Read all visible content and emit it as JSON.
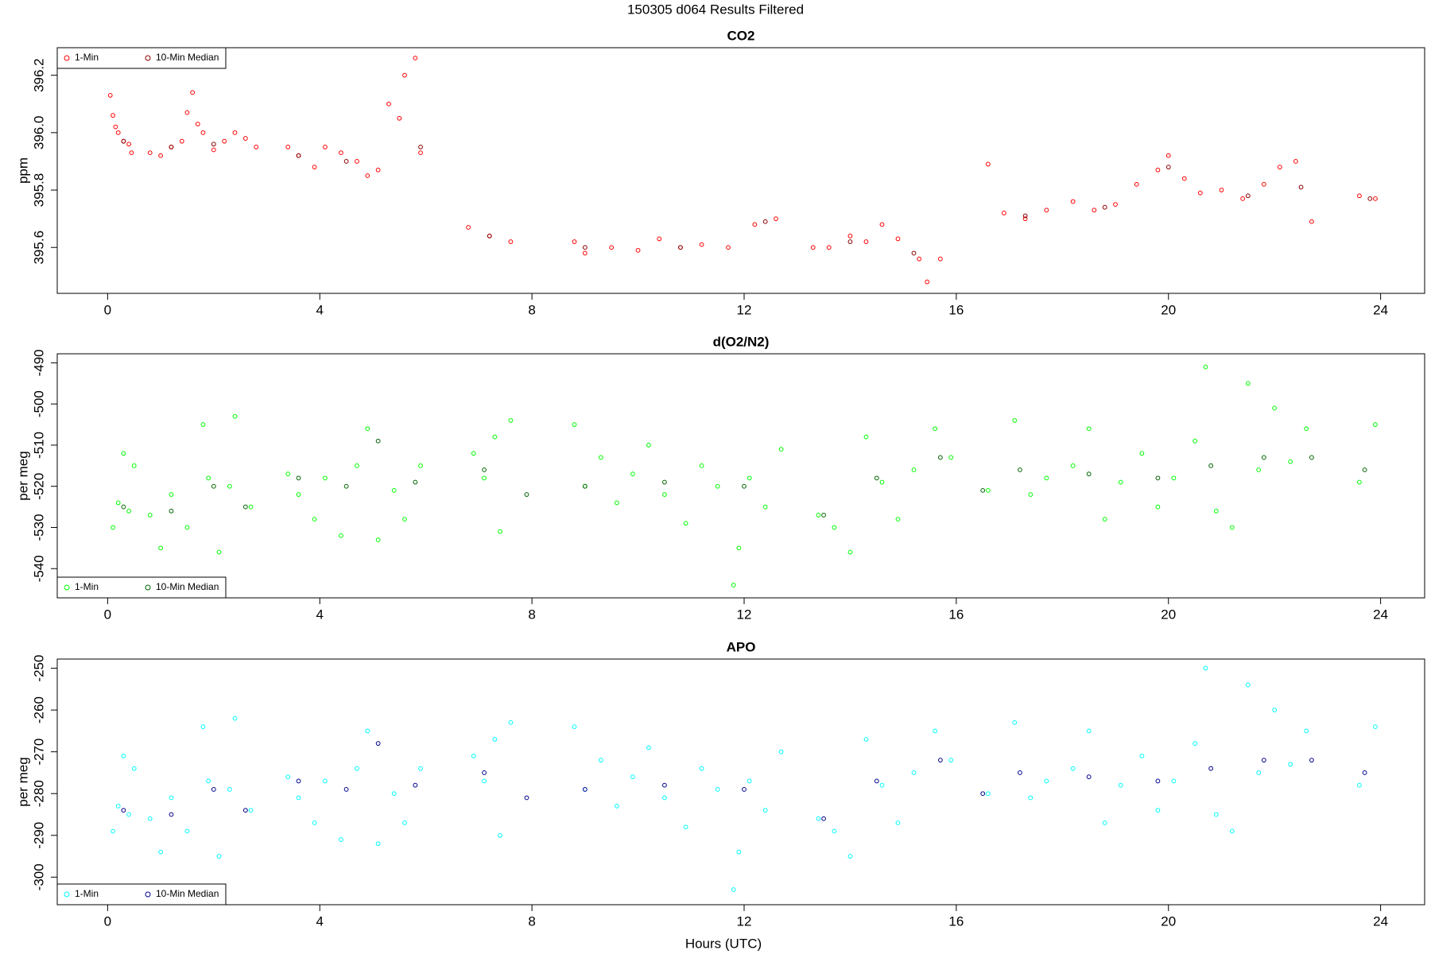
{
  "title": "150305   d064   Results Filtered",
  "xlabel": "Hours (UTC)",
  "chart_data": [
    {
      "type": "scatter",
      "title": "CO2",
      "ylabel": "ppm",
      "legend": "top-left",
      "xlim": [
        -0.95,
        24.83
      ],
      "xticks": [
        0,
        4,
        8,
        12,
        16,
        20,
        24
      ],
      "ylim": [
        395.44,
        396.296
      ],
      "yticks": [
        395.6,
        395.8,
        {
          "value": 396,
          "label": "396.0"
        },
        396.2
      ],
      "series": [
        {
          "name": "1-Min",
          "color": "#ff0000",
          "x": [
            0.05,
            0.1,
            0.15,
            0.2,
            0.3,
            0.4,
            0.45,
            0.8,
            1.0,
            1.2,
            1.4,
            1.5,
            1.6,
            1.7,
            1.8,
            2.0,
            2.2,
            2.4,
            2.6,
            2.8,
            3.4,
            3.6,
            3.9,
            4.1,
            4.4,
            4.7,
            4.9,
            5.1,
            5.3,
            5.5,
            5.6,
            5.8,
            5.9,
            6.8,
            7.2,
            7.6,
            8.8,
            9.0,
            9.5,
            10.0,
            10.4,
            10.8,
            11.2,
            11.7,
            12.2,
            12.6,
            13.3,
            13.6,
            14.0,
            14.3,
            14.6,
            14.9,
            15.3,
            15.45,
            15.7,
            16.6,
            16.9,
            17.3,
            17.7,
            18.2,
            18.6,
            19.0,
            19.4,
            19.8,
            20.0,
            20.3,
            20.6,
            21.0,
            21.4,
            21.8,
            22.1,
            22.4,
            22.7,
            23.6,
            23.9
          ],
          "values": [
            396.13,
            396.06,
            396.02,
            396.0,
            395.97,
            395.96,
            395.93,
            395.93,
            395.92,
            395.95,
            395.97,
            396.07,
            396.14,
            396.03,
            396.0,
            395.94,
            395.97,
            396.0,
            395.98,
            395.95,
            395.95,
            395.92,
            395.88,
            395.95,
            395.93,
            395.9,
            395.85,
            395.87,
            396.1,
            396.05,
            396.2,
            396.26,
            395.93,
            395.67,
            395.64,
            395.62,
            395.62,
            395.58,
            395.6,
            395.59,
            395.63,
            395.6,
            395.61,
            395.6,
            395.68,
            395.7,
            395.6,
            395.6,
            395.64,
            395.62,
            395.68,
            395.63,
            395.56,
            395.48,
            395.56,
            395.89,
            395.72,
            395.7,
            395.73,
            395.76,
            395.73,
            395.75,
            395.82,
            395.87,
            395.92,
            395.84,
            395.79,
            395.8,
            395.77,
            395.82,
            395.88,
            395.9,
            395.69,
            395.78,
            395.77
          ]
        },
        {
          "name": "10-Min Median",
          "color": "#8b0000",
          "x": [
            0.3,
            1.2,
            2.0,
            3.6,
            4.5,
            5.9,
            7.2,
            9.0,
            10.8,
            12.4,
            14.0,
            15.2,
            17.3,
            18.8,
            20.0,
            21.5,
            22.5,
            23.8
          ],
          "values": [
            395.97,
            395.95,
            395.96,
            395.92,
            395.9,
            395.95,
            395.64,
            395.6,
            395.6,
            395.69,
            395.62,
            395.58,
            395.71,
            395.74,
            395.88,
            395.78,
            395.81,
            395.77
          ]
        }
      ]
    },
    {
      "type": "scatter",
      "title": "d(O2/N2)",
      "ylabel": "per meg",
      "legend": "bottom-left",
      "xlim": [
        -0.95,
        24.83
      ],
      "xticks": [
        0,
        4,
        8,
        12,
        16,
        20,
        24
      ],
      "ylim": [
        -547.1,
        -487.8
      ],
      "yticks": [
        -540,
        -530,
        -520,
        -510,
        -500,
        -490
      ],
      "series": [
        {
          "name": "1-Min",
          "color": "#00ff00",
          "x": [
            0.1,
            0.2,
            0.3,
            0.4,
            0.5,
            0.8,
            1.0,
            1.2,
            1.5,
            1.8,
            1.9,
            2.1,
            2.3,
            2.4,
            2.7,
            3.4,
            3.6,
            3.9,
            4.1,
            4.4,
            4.7,
            4.9,
            5.1,
            5.4,
            5.6,
            5.9,
            6.9,
            7.1,
            7.3,
            7.4,
            7.6,
            8.8,
            9.0,
            9.3,
            9.6,
            9.9,
            10.2,
            10.5,
            10.9,
            11.2,
            11.5,
            11.8,
            11.9,
            12.1,
            12.4,
            12.7,
            13.4,
            13.7,
            14.0,
            14.3,
            14.6,
            14.9,
            15.2,
            15.6,
            15.9,
            16.6,
            17.1,
            17.4,
            17.7,
            18.2,
            18.5,
            18.8,
            19.1,
            19.5,
            19.8,
            20.1,
            20.5,
            20.7,
            20.9,
            21.2,
            21.5,
            21.7,
            22.0,
            22.3,
            22.6,
            23.6,
            23.9
          ],
          "values": [
            -530,
            -524,
            -512,
            -526,
            -515,
            -527,
            -535,
            -522,
            -530,
            -505,
            -518,
            -536,
            -520,
            -503,
            -525,
            -517,
            -522,
            -528,
            -518,
            -532,
            -515,
            -506,
            -533,
            -521,
            -528,
            -515,
            -512,
            -518,
            -508,
            -531,
            -504,
            -505,
            -520,
            -513,
            -524,
            -517,
            -510,
            -522,
            -529,
            -515,
            -520,
            -544,
            -535,
            -518,
            -525,
            -511,
            -527,
            -530,
            -536,
            -508,
            -519,
            -528,
            -516,
            -506,
            -513,
            -521,
            -504,
            -522,
            -518,
            -515,
            -506,
            -528,
            -519,
            -512,
            -525,
            -518,
            -509,
            -491,
            -526,
            -530,
            -495,
            -516,
            -501,
            -514,
            -506,
            -519,
            -505
          ]
        },
        {
          "name": "10-Min Median",
          "color": "#006400",
          "x": [
            0.3,
            1.2,
            2.0,
            2.6,
            3.6,
            4.5,
            5.1,
            5.8,
            7.1,
            7.9,
            9.0,
            10.5,
            12.0,
            13.5,
            14.5,
            15.7,
            16.5,
            17.2,
            18.5,
            19.8,
            20.8,
            21.8,
            22.7,
            23.7
          ],
          "values": [
            -525,
            -526,
            -520,
            -525,
            -518,
            -520,
            -509,
            -519,
            -516,
            -522,
            -520,
            -519,
            -520,
            -527,
            -518,
            -513,
            -521,
            -516,
            -517,
            -518,
            -515,
            -513,
            -513,
            -516
          ]
        }
      ]
    },
    {
      "type": "scatter",
      "title": "APO",
      "ylabel": "per meg",
      "legend": "bottom-left",
      "xlim": [
        -0.95,
        24.83
      ],
      "xticks": [
        0,
        4,
        8,
        12,
        16,
        20,
        24
      ],
      "ylim": [
        -306.6,
        -247.8
      ],
      "yticks": [
        -300,
        -290,
        -280,
        -270,
        -260,
        -250
      ],
      "series": [
        {
          "name": "1-Min",
          "color": "#00ffff",
          "x": [
            0.1,
            0.2,
            0.3,
            0.4,
            0.5,
            0.8,
            1.0,
            1.2,
            1.5,
            1.8,
            1.9,
            2.1,
            2.3,
            2.4,
            2.7,
            3.4,
            3.6,
            3.9,
            4.1,
            4.4,
            4.7,
            4.9,
            5.1,
            5.4,
            5.6,
            5.9,
            6.9,
            7.1,
            7.3,
            7.4,
            7.6,
            8.8,
            9.0,
            9.3,
            9.6,
            9.9,
            10.2,
            10.5,
            10.9,
            11.2,
            11.5,
            11.8,
            11.9,
            12.1,
            12.4,
            12.7,
            13.4,
            13.7,
            14.0,
            14.3,
            14.6,
            14.9,
            15.2,
            15.6,
            15.9,
            16.6,
            17.1,
            17.4,
            17.7,
            18.2,
            18.5,
            18.8,
            19.1,
            19.5,
            19.8,
            20.1,
            20.5,
            20.7,
            20.9,
            21.2,
            21.5,
            21.7,
            22.0,
            22.3,
            22.6,
            23.6,
            23.9
          ],
          "values": [
            -289,
            -283,
            -271,
            -285,
            -274,
            -286,
            -294,
            -281,
            -289,
            -264,
            -277,
            -295,
            -279,
            -262,
            -284,
            -276,
            -281,
            -287,
            -277,
            -291,
            -274,
            -265,
            -292,
            -280,
            -287,
            -274,
            -271,
            -277,
            -267,
            -290,
            -263,
            -264,
            -279,
            -272,
            -283,
            -276,
            -269,
            -281,
            -288,
            -274,
            -279,
            -303,
            -294,
            -277,
            -284,
            -270,
            -286,
            -289,
            -295,
            -267,
            -278,
            -287,
            -275,
            -265,
            -272,
            -280,
            -263,
            -281,
            -277,
            -274,
            -265,
            -287,
            -278,
            -271,
            -284,
            -277,
            -268,
            -250,
            -285,
            -289,
            -254,
            -275,
            -260,
            -273,
            -265,
            -278,
            -264
          ]
        },
        {
          "name": "10-Min Median",
          "color": "#00008b",
          "x": [
            0.3,
            1.2,
            2.0,
            2.6,
            3.6,
            4.5,
            5.1,
            5.8,
            7.1,
            7.9,
            9.0,
            10.5,
            12.0,
            13.5,
            14.5,
            15.7,
            16.5,
            17.2,
            18.5,
            19.8,
            20.8,
            21.8,
            22.7,
            23.7
          ],
          "values": [
            -284,
            -285,
            -279,
            -284,
            -277,
            -279,
            -268,
            -278,
            -275,
            -281,
            -279,
            -278,
            -279,
            -286,
            -277,
            -272,
            -280,
            -275,
            -276,
            -277,
            -274,
            -272,
            -272,
            -275
          ]
        }
      ]
    }
  ]
}
